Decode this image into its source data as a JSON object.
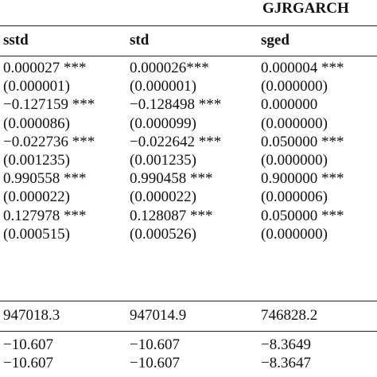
{
  "title": "GJRGARCH",
  "table": {
    "columns": [
      "sstd",
      "std",
      "sged"
    ],
    "rows": [
      [
        "0.000027 ***",
        "0.000026***",
        "0.000004 ***"
      ],
      [
        "(0.000001)",
        "(0.000001)",
        "(0.000000)"
      ],
      [
        "−0.127159 ***",
        "−0.128498 ***",
        "0.000000"
      ],
      [
        "(0.000086)",
        "(0.000099)",
        "(0.000000)"
      ],
      [
        "−0.022736 ***",
        "−0.022642 ***",
        "0.050000 ***"
      ],
      [
        "(0.001235)",
        "(0.001235)",
        "(0.000000)"
      ],
      [
        "0.990558 ***",
        "0.990458 ***",
        "0.900000 ***"
      ],
      [
        "(0.000022)",
        "(0.000022)",
        "(0.000006)"
      ],
      [
        "0.127978 ***",
        "0.128087 ***",
        "0.050000 ***"
      ],
      [
        "(0.000515)",
        "(0.000526)",
        "(0.000000)"
      ]
    ],
    "loglik_row": [
      "947018.3",
      "947014.9",
      "746828.2"
    ],
    "criteria_rows": [
      [
        "−10.607",
        "−10.607",
        "−8.3649"
      ],
      [
        "−10.607",
        "−10.607",
        "−8.3647"
      ]
    ]
  }
}
